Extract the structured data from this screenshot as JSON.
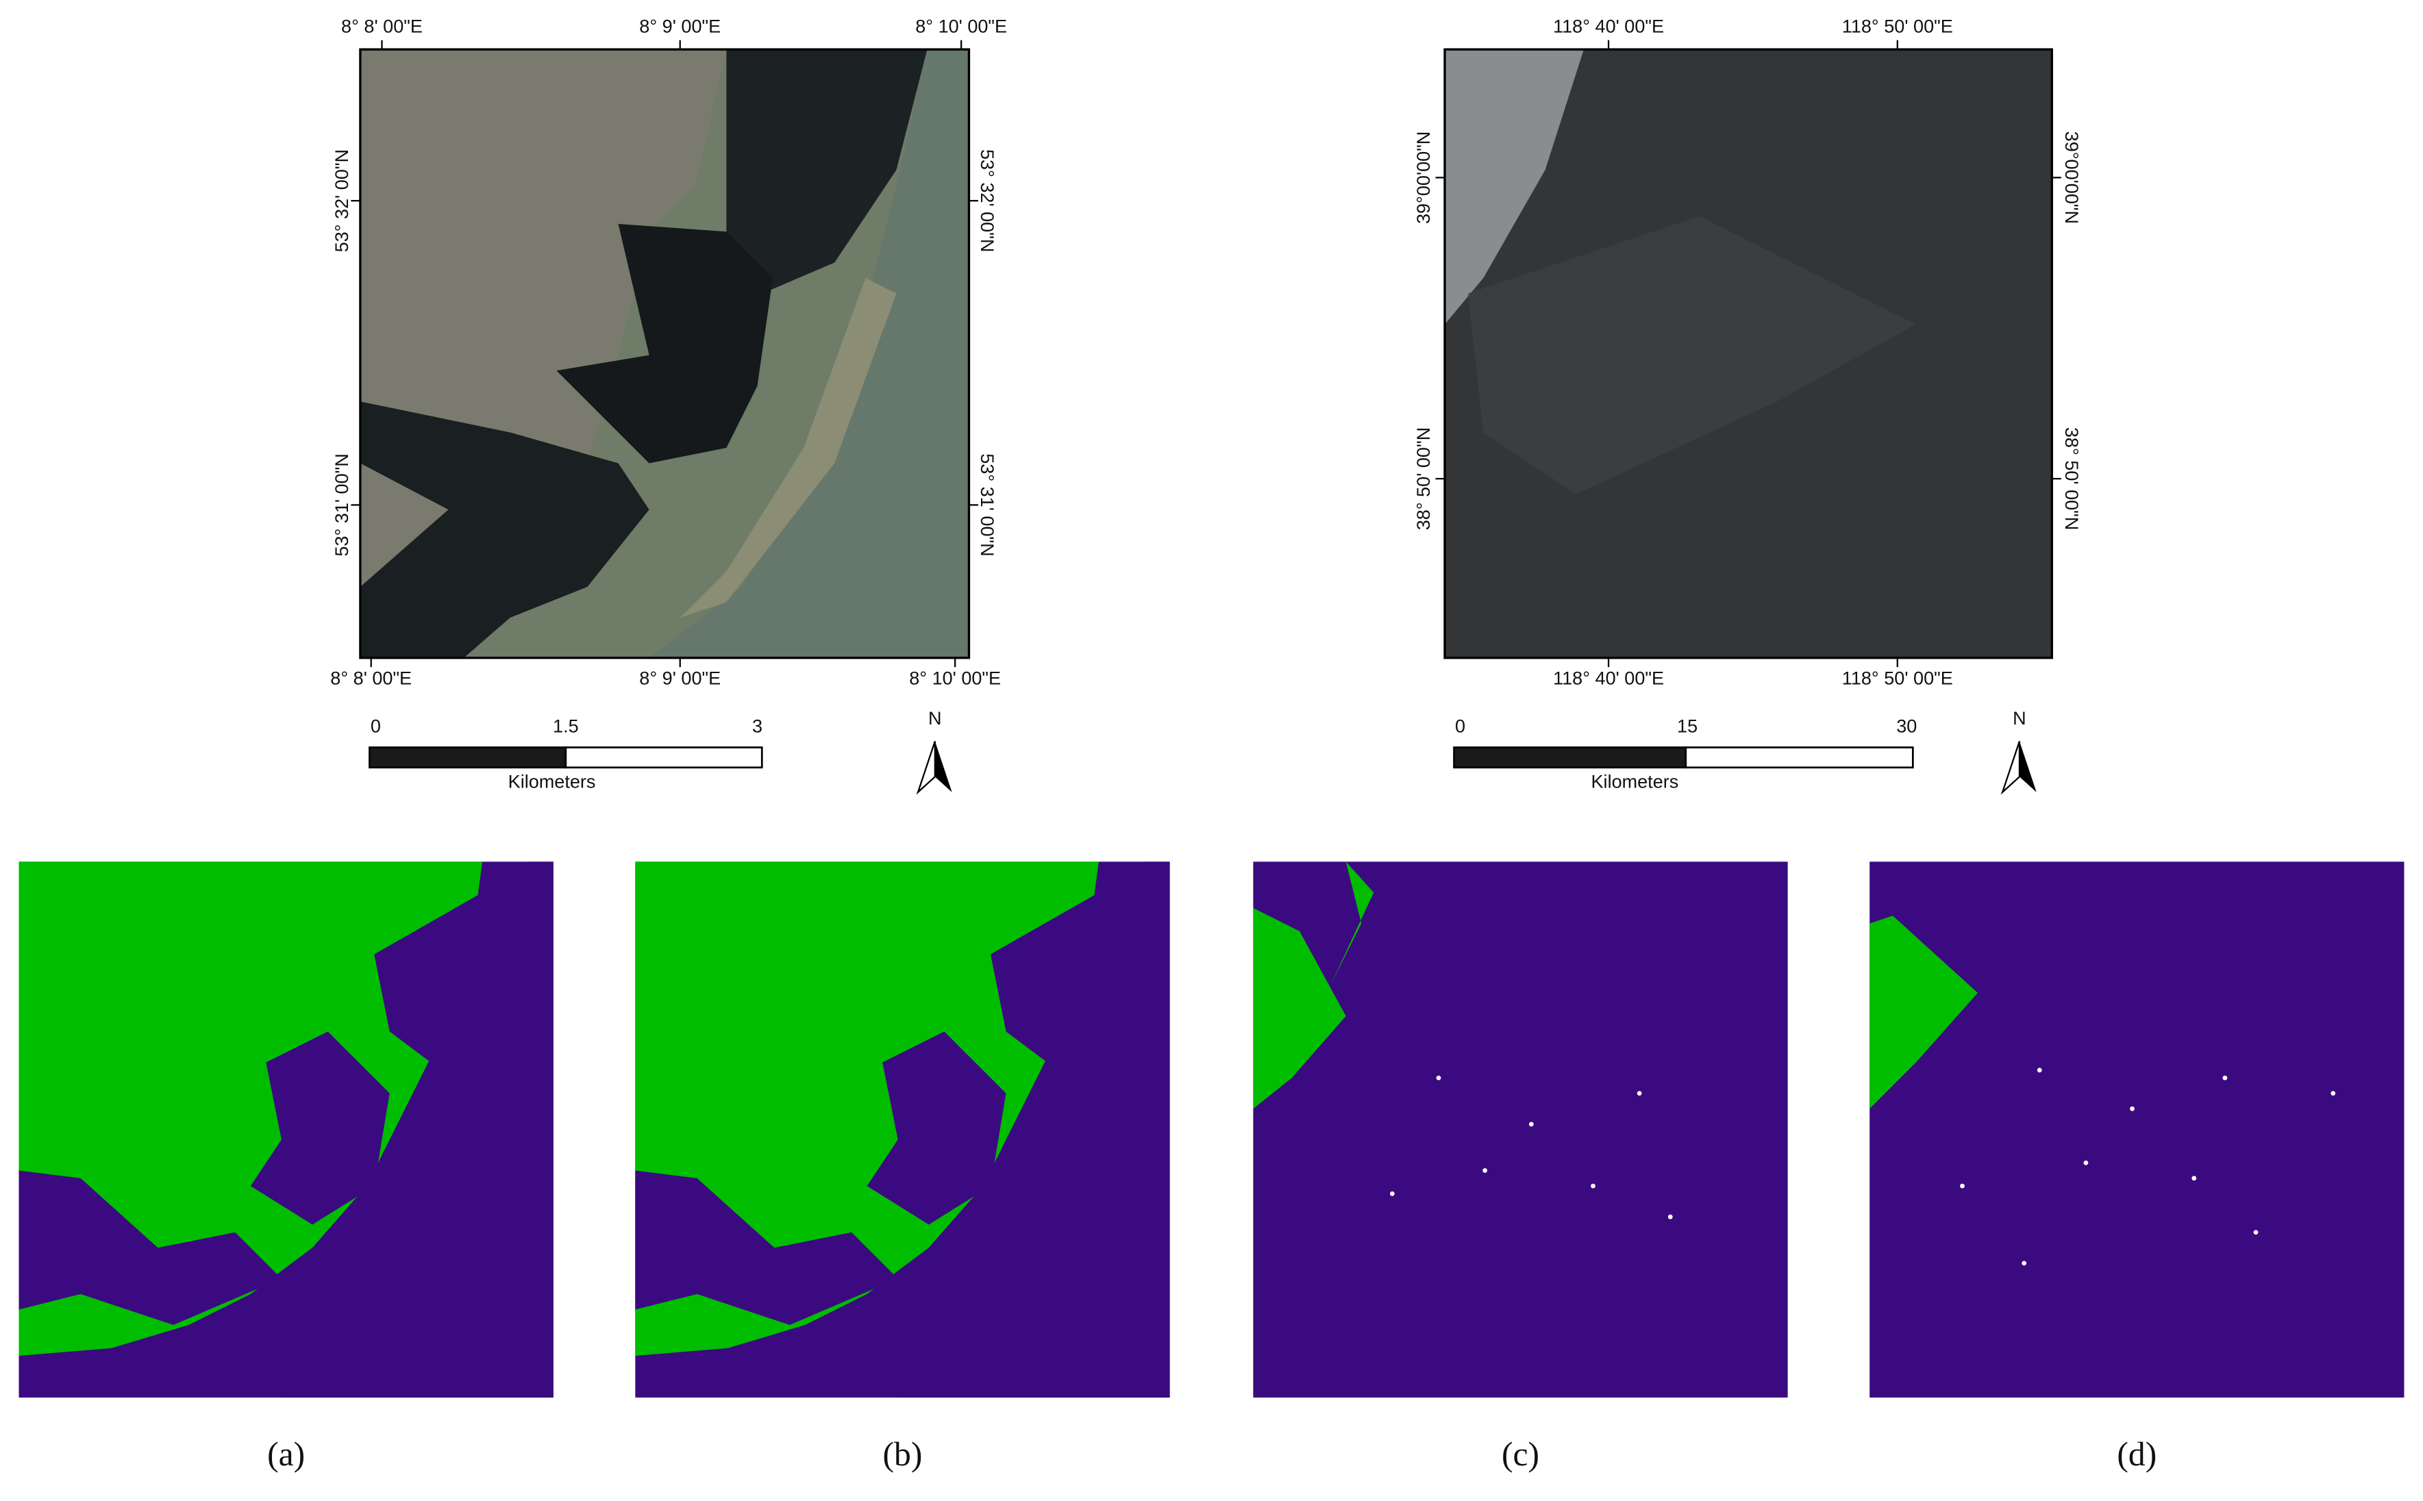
{
  "maps": [
    {
      "top_labels": [
        "8° 8' 00\"E",
        "8° 9' 00\"E",
        "8° 10' 00\"E"
      ],
      "bottom_labels": [
        "8° 8' 00\"E",
        "8° 9' 00\"E",
        "8° 10' 00\"E"
      ],
      "left_labels": [
        "53° 32' 00\"N",
        "53° 31' 00\"N"
      ],
      "right_labels": [
        "53° 32' 00\"N",
        "53° 31' 00\"N"
      ],
      "scale_labels": [
        "0",
        "1.5",
        "3"
      ],
      "scale_unit": "Kilometers",
      "north": "N"
    },
    {
      "top_labels": [
        "118° 40' 00\"E",
        "118° 50' 00\"E"
      ],
      "bottom_labels": [
        "118° 40' 00\"E",
        "118° 50' 00\"E"
      ],
      "left_labels": [
        "39°00'00\"N",
        "38° 50' 00\"N"
      ],
      "right_labels": [
        "39°00'00\"N",
        "38° 50' 00\"N"
      ],
      "scale_labels": [
        "0",
        "15",
        "30"
      ],
      "scale_unit": "Kilometers",
      "north": "N"
    }
  ],
  "captions": [
    "(a)",
    "(b)",
    "(c)",
    "(d)"
  ]
}
